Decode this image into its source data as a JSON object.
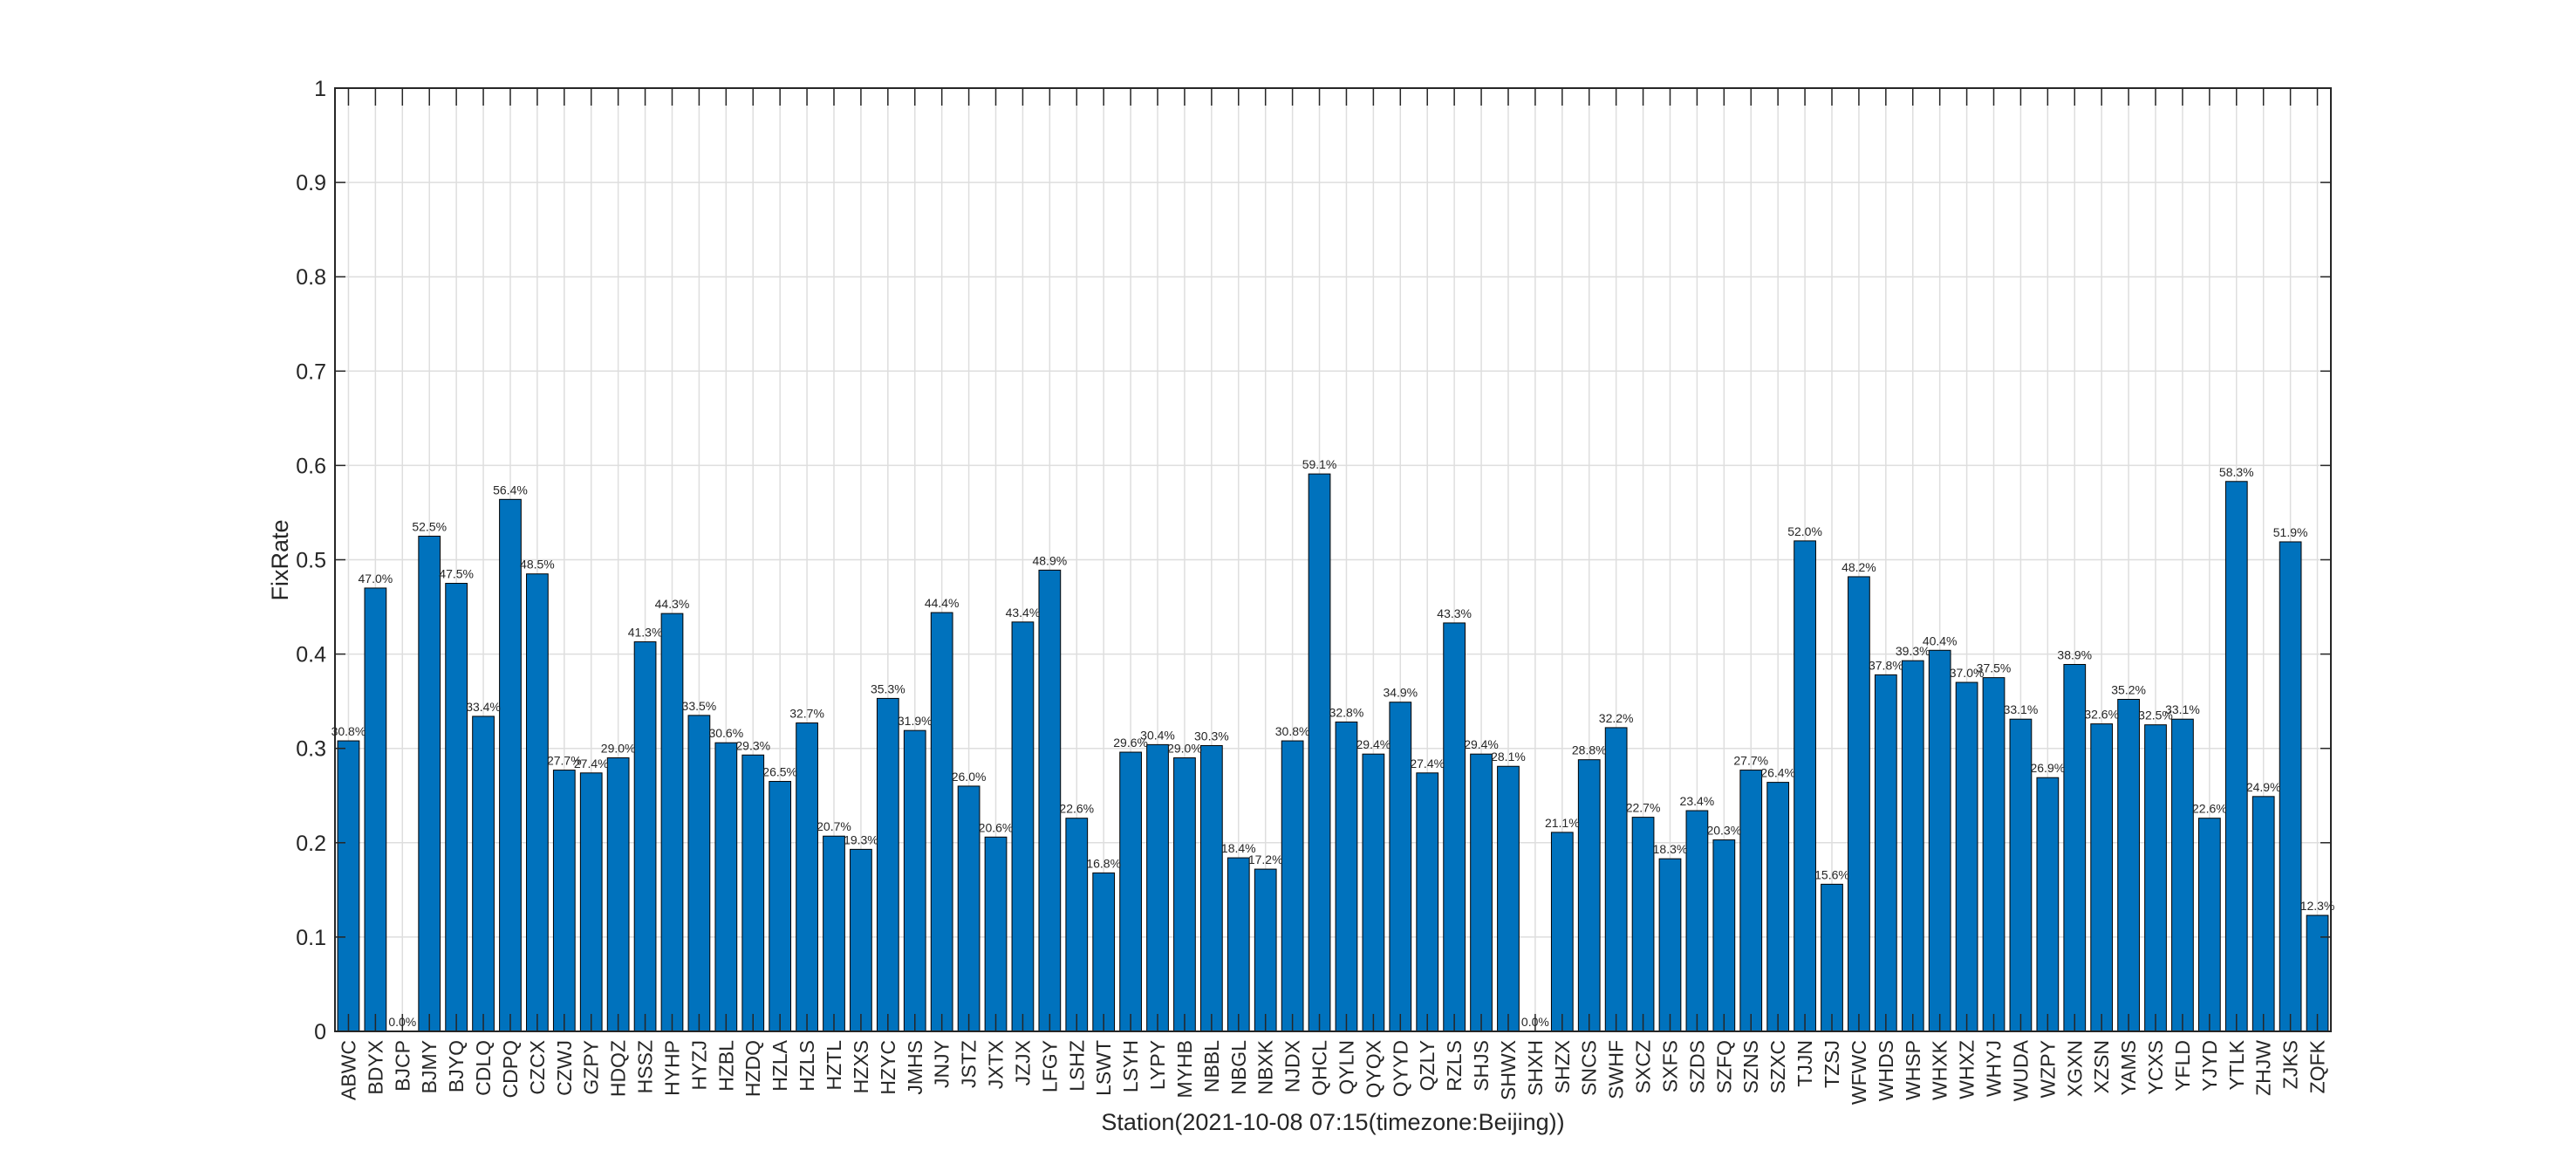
{
  "chart_data": {
    "type": "bar",
    "xlabel": "Station(2021-10-08  07:15(timezone:Beijing))",
    "ylabel": "FixRate",
    "ylim": [
      0,
      1
    ],
    "yticks": [
      "0",
      "0.1",
      "0.2",
      "0.3",
      "0.4",
      "0.5",
      "0.6",
      "0.7",
      "0.8",
      "0.9",
      "1"
    ],
    "grid": true,
    "bar_color": "#0072BD",
    "categories": [
      "ABWC",
      "BDYX",
      "BJCP",
      "BJMY",
      "BJYQ",
      "CDLQ",
      "CDPQ",
      "CZCX",
      "CZWJ",
      "GZPY",
      "HDQZ",
      "HSSZ",
      "HYHP",
      "HYZJ",
      "HZBL",
      "HZDQ",
      "HZLA",
      "HZLS",
      "HZTL",
      "HZXS",
      "HZYC",
      "JMHS",
      "JNJY",
      "JSTZ",
      "JXTX",
      "JZJX",
      "LFGY",
      "LSHZ",
      "LSWT",
      "LSYH",
      "LYPY",
      "MYHB",
      "NBBL",
      "NBGL",
      "NBXK",
      "NJDX",
      "QHCL",
      "QYLN",
      "QYQX",
      "QYYD",
      "QZLY",
      "RZLS",
      "SHJS",
      "SHWX",
      "SHXH",
      "SHZX",
      "SNCS",
      "SWHF",
      "SXCZ",
      "SXFS",
      "SZDS",
      "SZFQ",
      "SZNS",
      "SZXC",
      "TJJN",
      "TZSJ",
      "WFWC",
      "WHDS",
      "WHSP",
      "WHXK",
      "WHXZ",
      "WHYJ",
      "WUDA",
      "WZPY",
      "XGXN",
      "XZSN",
      "YAMS",
      "YCXS",
      "YFLD",
      "YJYD",
      "YTLK",
      "ZHJW",
      "ZJKS",
      "ZQFK"
    ],
    "values": [
      0.308,
      0.47,
      0.0,
      0.525,
      0.475,
      0.334,
      0.564,
      0.485,
      0.277,
      0.274,
      0.29,
      0.413,
      0.443,
      0.335,
      0.306,
      0.293,
      0.265,
      0.327,
      0.207,
      0.193,
      0.353,
      0.319,
      0.444,
      0.26,
      0.206,
      0.434,
      0.489,
      0.226,
      0.168,
      0.296,
      0.304,
      0.29,
      0.303,
      0.184,
      0.172,
      0.308,
      0.591,
      0.328,
      0.294,
      0.349,
      0.274,
      0.433,
      0.294,
      0.281,
      0.0,
      0.211,
      0.288,
      0.322,
      0.227,
      0.183,
      0.234,
      0.203,
      0.277,
      0.264,
      0.52,
      0.156,
      0.482,
      0.378,
      0.393,
      0.404,
      0.37,
      0.375,
      0.331,
      0.269,
      0.389,
      0.326,
      0.352,
      0.325,
      0.331,
      0.226,
      0.583,
      0.249,
      0.519,
      0.123
    ],
    "data_labels": [
      "30.8%",
      "47.0%",
      "0.0%",
      "52.5%",
      "47.5%",
      "33.4%",
      "56.4%",
      "48.5%",
      "27.7%",
      "27.4%",
      "29.0%",
      "41.3%",
      "44.3%",
      "33.5%",
      "30.6%",
      "29.3%",
      "26.5%",
      "32.7%",
      "20.7%",
      "19.3%",
      "35.3%",
      "31.9%",
      "44.4%",
      "26.0%",
      "20.6%",
      "43.4%",
      "48.9%",
      "22.6%",
      "16.8%",
      "29.6%",
      "30.4%",
      "29.0%",
      "30.3%",
      "18.4%",
      "17.2%",
      "30.8%",
      "59.1%",
      "32.8%",
      "29.4%",
      "34.9%",
      "27.4%",
      "43.3%",
      "29.4%",
      "28.1%",
      "0.0%",
      "21.1%",
      "28.8%",
      "32.2%",
      "22.7%",
      "18.3%",
      "23.4%",
      "20.3%",
      "27.7%",
      "26.4%",
      "52.0%",
      "15.6%",
      "48.2%",
      "37.8%",
      "39.3%",
      "40.4%",
      "37.0%",
      "37.5%",
      "33.1%",
      "26.9%",
      "38.9%",
      "32.6%",
      "35.2%",
      "32.5%",
      "33.1%",
      "22.6%",
      "58.3%",
      "24.9%",
      "51.9%",
      "12.3%"
    ]
  }
}
